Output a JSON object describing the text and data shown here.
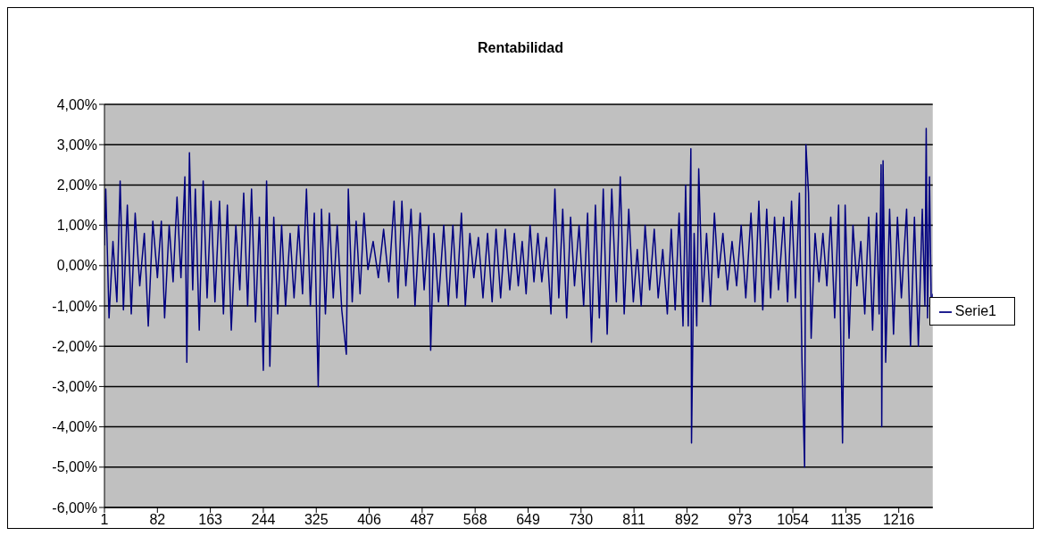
{
  "chart_data": {
    "type": "line",
    "title": "Rentabilidad",
    "xlim": [
      1,
      1268
    ],
    "xticks": [
      1,
      82,
      163,
      244,
      325,
      406,
      487,
      568,
      649,
      730,
      811,
      892,
      973,
      1054,
      1135,
      1216
    ],
    "ylim": [
      -6,
      4
    ],
    "yticks": [
      {
        "value": -6,
        "label": "-6,00%"
      },
      {
        "value": -5,
        "label": "-5,00%"
      },
      {
        "value": -4,
        "label": "-4,00%"
      },
      {
        "value": -3,
        "label": "-3,00%"
      },
      {
        "value": -2,
        "label": "-2,00%"
      },
      {
        "value": -1,
        "label": "-1,00%"
      },
      {
        "value": 0,
        "label": "0,00%"
      },
      {
        "value": 1,
        "label": "1,00%"
      },
      {
        "value": 2,
        "label": "2,00%"
      },
      {
        "value": 3,
        "label": "3,00%"
      },
      {
        "value": 4,
        "label": "4,00%"
      }
    ],
    "grid": "y",
    "legend": "right",
    "marker": "none",
    "line_style": "solid",
    "series": [
      {
        "name": "Serie1",
        "color": "#000080",
        "x": [
          1,
          3,
          8,
          14,
          20,
          25,
          30,
          36,
          42,
          48,
          55,
          62,
          68,
          75,
          82,
          88,
          93,
          100,
          106,
          112,
          118,
          124,
          127,
          131,
          136,
          140,
          146,
          152,
          158,
          164,
          170,
          177,
          183,
          189,
          195,
          202,
          208,
          214,
          220,
          226,
          232,
          238,
          244,
          249,
          254,
          260,
          266,
          272,
          278,
          285,
          291,
          298,
          304,
          310,
          316,
          322,
          328,
          333,
          339,
          345,
          351,
          357,
          364,
          371,
          374,
          380,
          386,
          392,
          398,
          404,
          412,
          420,
          428,
          436,
          444,
          450,
          456,
          462,
          470,
          476,
          484,
          490,
          497,
          500,
          505,
          512,
          520,
          527,
          534,
          540,
          547,
          553,
          560,
          566,
          573,
          580,
          587,
          594,
          600,
          607,
          614,
          621,
          628,
          634,
          640,
          646,
          652,
          658,
          664,
          670,
          677,
          684,
          690,
          696,
          702,
          708,
          714,
          720,
          727,
          734,
          740,
          746,
          752,
          758,
          764,
          770,
          777,
          784,
          790,
          796,
          803,
          810,
          816,
          822,
          828,
          835,
          842,
          848,
          855,
          862,
          868,
          874,
          880,
          886,
          890,
          894,
          898,
          899,
          903,
          907,
          910,
          916,
          922,
          928,
          934,
          940,
          947,
          954,
          961,
          968,
          975,
          982,
          990,
          996,
          1002,
          1008,
          1014,
          1020,
          1026,
          1032,
          1040,
          1046,
          1052,
          1058,
          1064,
          1068,
          1072,
          1074,
          1078,
          1082,
          1088,
          1094,
          1100,
          1106,
          1112,
          1118,
          1124,
          1130,
          1134,
          1140,
          1146,
          1152,
          1158,
          1164,
          1170,
          1176,
          1182,
          1186,
          1189,
          1190,
          1192,
          1196,
          1202,
          1208,
          1214,
          1220,
          1228,
          1234,
          1240,
          1246,
          1252,
          1256,
          1258,
          1260,
          1263,
          1266,
          1268
        ],
        "values": [
          0.5,
          1.9,
          -1.3,
          0.6,
          -0.9,
          2.1,
          -1.1,
          1.5,
          -1.2,
          1.3,
          -0.5,
          0.8,
          -1.5,
          1.1,
          -0.3,
          1.1,
          -1.3,
          1.0,
          -0.4,
          1.7,
          -0.3,
          2.2,
          -2.4,
          2.8,
          -0.6,
          1.9,
          -1.6,
          2.1,
          -0.8,
          1.6,
          -0.9,
          1.6,
          -1.2,
          1.5,
          -1.6,
          1.0,
          -0.6,
          1.8,
          -1.0,
          1.9,
          -1.4,
          1.2,
          -2.6,
          2.1,
          -2.5,
          1.2,
          -1.2,
          1.0,
          -1.0,
          0.8,
          -0.8,
          1.0,
          -0.7,
          1.9,
          -1.0,
          1.3,
          -3.0,
          1.4,
          -1.2,
          1.3,
          -0.8,
          1.0,
          -1.1,
          -2.2,
          1.9,
          -0.9,
          1.1,
          -0.7,
          1.3,
          -0.1,
          0.6,
          -0.3,
          0.9,
          -0.4,
          1.6,
          -0.8,
          1.6,
          -0.5,
          1.4,
          -1.0,
          1.3,
          -0.6,
          1.0,
          -2.1,
          0.8,
          -0.9,
          1.0,
          -1.0,
          1.0,
          -0.8,
          1.3,
          -1.0,
          0.8,
          -0.3,
          0.7,
          -0.8,
          0.8,
          -0.9,
          0.9,
          -0.8,
          0.9,
          -0.6,
          0.8,
          -0.5,
          0.6,
          -0.7,
          1.0,
          -0.4,
          0.8,
          -0.4,
          0.7,
          -1.2,
          1.9,
          -0.8,
          1.4,
          -1.3,
          1.2,
          -0.5,
          1.0,
          -1.0,
          1.3,
          -1.9,
          1.5,
          -1.3,
          1.9,
          -1.7,
          1.9,
          -0.9,
          2.2,
          -1.2,
          1.4,
          -0.9,
          0.4,
          -1.0,
          1.0,
          -0.6,
          0.9,
          -0.8,
          0.4,
          -1.2,
          0.9,
          -1.1,
          1.3,
          -1.5,
          2.0,
          -1.5,
          2.9,
          -4.4,
          0.8,
          -1.5,
          2.4,
          -0.9,
          0.8,
          -1.0,
          1.3,
          -0.3,
          0.8,
          -0.6,
          0.6,
          -0.5,
          1.0,
          -0.8,
          1.3,
          -0.9,
          1.6,
          -1.1,
          1.4,
          -0.8,
          1.2,
          -0.6,
          1.2,
          -0.9,
          1.6,
          -0.8,
          1.8,
          -2.4,
          -5.0,
          3.0,
          1.8,
          -1.8,
          0.8,
          -0.4,
          0.8,
          -0.5,
          1.2,
          -1.3,
          1.5,
          -4.4,
          1.5,
          -1.8,
          1.0,
          -0.5,
          0.6,
          -1.2,
          1.2,
          -1.6,
          1.3,
          -1.2,
          2.5,
          -4.0,
          2.6,
          -2.4,
          1.4,
          -1.7,
          1.2,
          -0.8,
          1.4,
          -2.0,
          1.2,
          -2.0,
          1.4,
          -1.0,
          3.4,
          -1.3,
          2.2,
          -1.3,
          -0.7
        ]
      }
    ]
  }
}
